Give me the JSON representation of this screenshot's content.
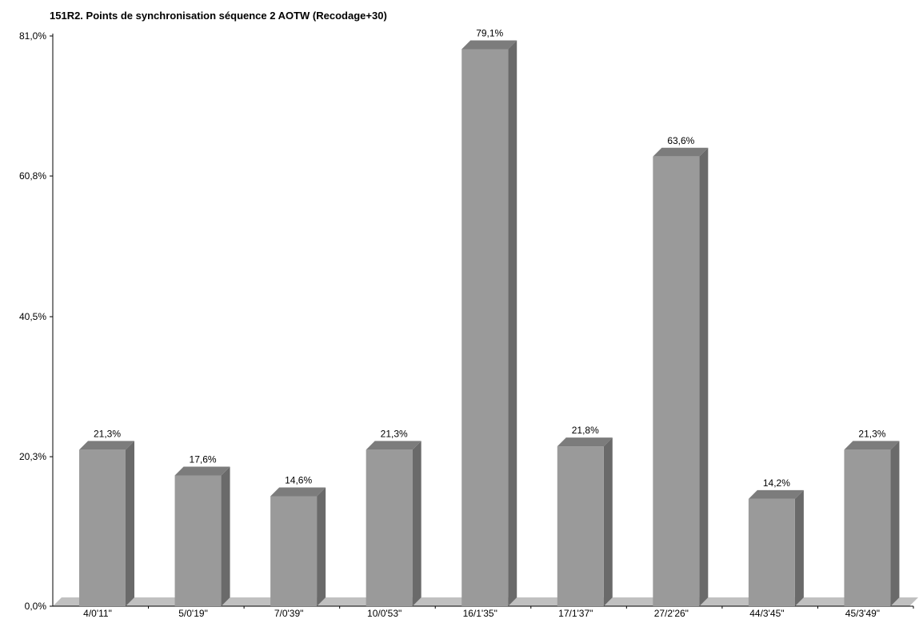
{
  "chart_data": {
    "type": "bar",
    "title": "151R2. Points de synchronisation séquence 2 AOTW (Recodage+30)",
    "xlabel": "",
    "ylabel": "",
    "categories": [
      "4/0'11\"",
      "5/0'19\"",
      "7/0'39\"",
      "10/0'53\"",
      "16/1'35\"",
      "17/1'37\"",
      "27/2'26\"",
      "44/3'45\"",
      "45/3'49\""
    ],
    "values": [
      21.3,
      17.6,
      14.6,
      21.3,
      79.1,
      21.8,
      63.6,
      14.2,
      21.3
    ],
    "value_labels": [
      "21,3%",
      "17,6%",
      "14,6%",
      "21,3%",
      "79,1%",
      "21,8%",
      "63,6%",
      "14,2%",
      "21,3%"
    ],
    "y_ticks": [
      0.0,
      20.3,
      40.5,
      60.8,
      81.0
    ],
    "y_tick_labels": [
      "0,0%",
      "20,3%",
      "40,5%",
      "60,8%",
      "81,0%"
    ],
    "ylim": [
      0,
      81.0
    ],
    "grid": false,
    "legend": "none",
    "style": "3d-bar",
    "colors": {
      "bar_front": "#9a9a9a",
      "bar_side": "#6a6a6a",
      "bar_top": "#7c7c7c",
      "floor": "#c0c0c0",
      "axis": "#000000"
    }
  }
}
